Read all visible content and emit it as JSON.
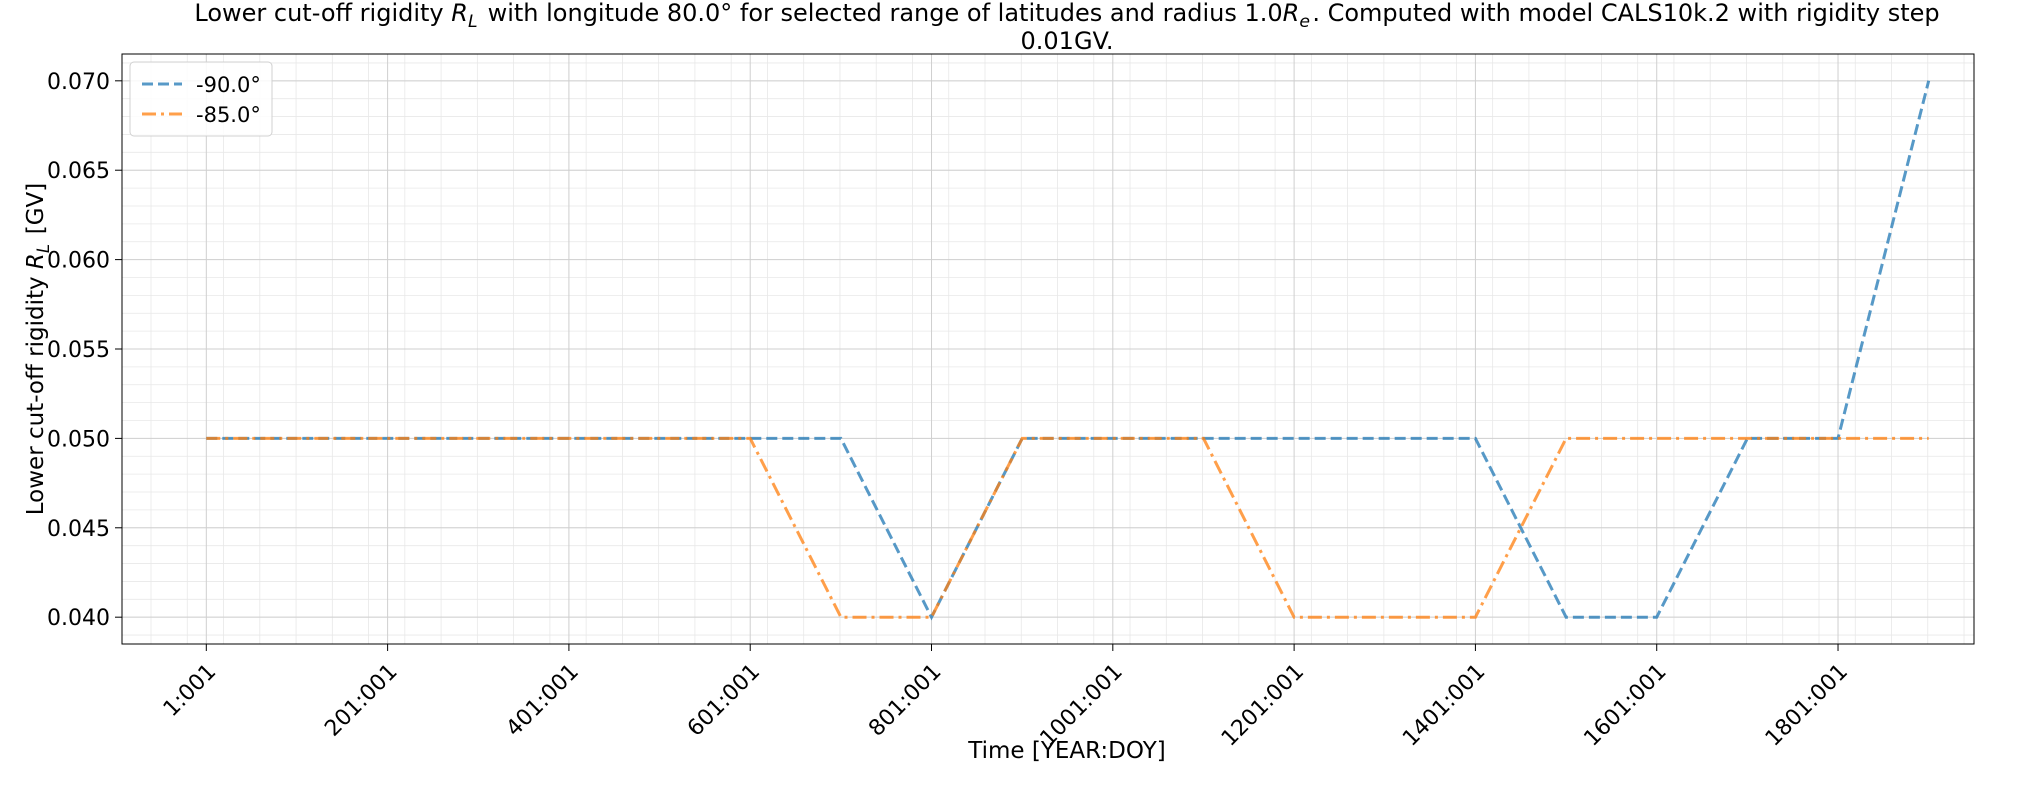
{
  "chart_data": {
    "type": "line",
    "title_line1": "Lower cut-off rigidity R_L with longitude 80.0° for selected range of latitudes and radius 1.0R_e. Computed with model CALS10k.2 with rigidity step",
    "title_line2": "0.01GV.",
    "xlabel": "Time [YEAR:DOY]",
    "ylabel": "Lower cut-off rigidity R_L [GV]",
    "x_ticks": [
      "1:001",
      "201:001",
      "401:001",
      "601:001",
      "801:001",
      "1001:001",
      "1201:001",
      "1401:001",
      "1601:001",
      "1801:001"
    ],
    "x_tick_years": [
      1,
      201,
      401,
      601,
      801,
      1001,
      1201,
      1401,
      1601,
      1801
    ],
    "y_ticks": [
      "0.040",
      "0.045",
      "0.050",
      "0.055",
      "0.060",
      "0.065",
      "0.070"
    ],
    "y_tick_values": [
      0.04,
      0.045,
      0.05,
      0.055,
      0.06,
      0.065,
      0.07
    ],
    "xlim": [
      -92,
      1951
    ],
    "ylim": [
      0.0385,
      0.0715
    ],
    "grid": true,
    "legend_position": "top-left",
    "series": [
      {
        "name": "-90.0°",
        "color": "#1f77b4",
        "dash": "dashed",
        "x": [
          1,
          101,
          201,
          301,
          401,
          501,
          601,
          701,
          801,
          901,
          1001,
          1101,
          1201,
          1301,
          1401,
          1501,
          1601,
          1701,
          1801,
          1901
        ],
        "y": [
          0.05,
          0.05,
          0.05,
          0.05,
          0.05,
          0.05,
          0.05,
          0.05,
          0.04,
          0.05,
          0.05,
          0.05,
          0.05,
          0.05,
          0.05,
          0.04,
          0.04,
          0.05,
          0.05,
          0.07
        ]
      },
      {
        "name": "-85.0°",
        "color": "#ff7f0e",
        "dash": "dashdot",
        "x": [
          1,
          101,
          201,
          301,
          401,
          501,
          601,
          701,
          801,
          901,
          1001,
          1101,
          1201,
          1301,
          1401,
          1501,
          1601,
          1701,
          1801,
          1901
        ],
        "y": [
          0.05,
          0.05,
          0.05,
          0.05,
          0.05,
          0.05,
          0.05,
          0.04,
          0.04,
          0.05,
          0.05,
          0.05,
          0.04,
          0.04,
          0.04,
          0.05,
          0.05,
          0.05,
          0.05,
          0.05
        ]
      }
    ]
  }
}
